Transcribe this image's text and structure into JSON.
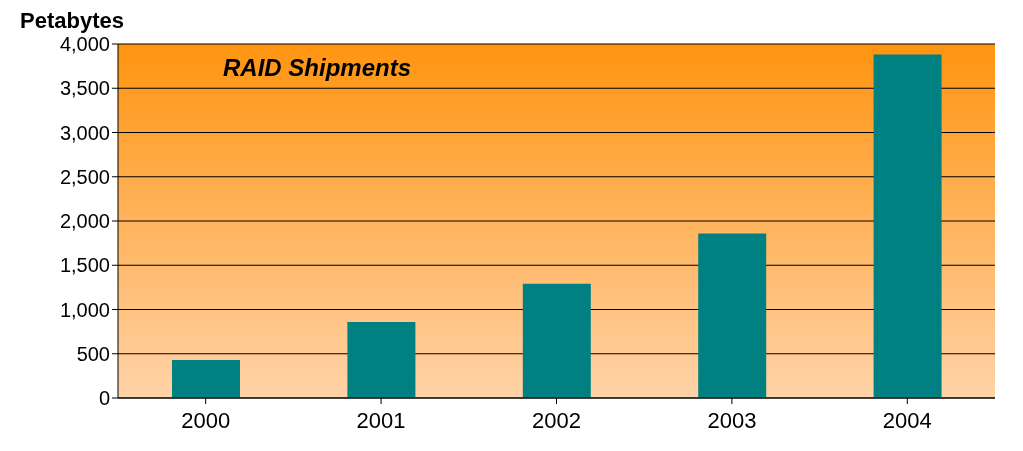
{
  "chart_data": {
    "type": "bar",
    "title": "RAID Shipments",
    "ylabel": "Petabytes",
    "categories": [
      "2000",
      "2001",
      "2002",
      "2003",
      "2004"
    ],
    "values": [
      430,
      860,
      1290,
      1860,
      3880
    ],
    "color": "#008080",
    "ylim": [
      0,
      4000
    ],
    "yticks": [
      0,
      {
        "value": 500,
        "label": "500"
      },
      {
        "value": 1000,
        "label": "1,000"
      },
      {
        "value": 1500,
        "label": "1,500"
      },
      {
        "value": 2000,
        "label": "2,000"
      },
      {
        "value": 2500,
        "label": "2,500"
      },
      {
        "value": 3000,
        "label": "3,000"
      },
      {
        "value": 3500,
        "label": "3,500"
      },
      {
        "value": 4000,
        "label": "4,000"
      }
    ],
    "grid": "y",
    "legend": false
  }
}
